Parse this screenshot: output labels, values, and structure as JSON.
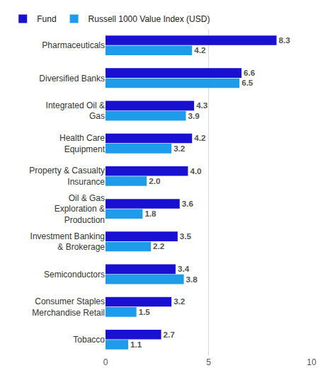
{
  "chart_data": {
    "type": "bar",
    "orientation": "horizontal",
    "categories": [
      "Pharmaceuticals",
      "Diversified Banks",
      "Integrated Oil & Gas",
      "Health Care Equipment",
      "Property & Casualty Insurance",
      "Oil & Gas Exploration & Production",
      "Investment Banking & Brokerage",
      "Semiconductors",
      "Consumer Staples Merchandise Retail",
      "Tobacco"
    ],
    "series": [
      {
        "name": "Fund",
        "color": "#1a10d2",
        "values": [
          8.3,
          6.6,
          4.3,
          4.2,
          4.0,
          3.6,
          3.5,
          3.4,
          3.2,
          2.7
        ],
        "value_labels": [
          "8.3",
          "6.6",
          "4.3",
          "4.2",
          "4.0",
          "3.6",
          "3.5",
          "3.4",
          "3.2",
          "2.7"
        ]
      },
      {
        "name": "Russell 1000 Value Index (USD)",
        "color": "#1e9cea",
        "values": [
          4.2,
          6.5,
          3.9,
          3.2,
          2.0,
          1.8,
          2.2,
          3.8,
          1.5,
          1.1
        ],
        "value_labels": [
          "4.2",
          "6.5",
          "3.9",
          "3.2",
          "2.0",
          "1.8",
          "2.2",
          "3.8",
          "1.5",
          "1.1"
        ]
      }
    ],
    "xlim": [
      0,
      10
    ],
    "xticks": [
      0,
      5,
      10
    ],
    "grid": true,
    "legend": "top-left",
    "data_labels": true
  }
}
